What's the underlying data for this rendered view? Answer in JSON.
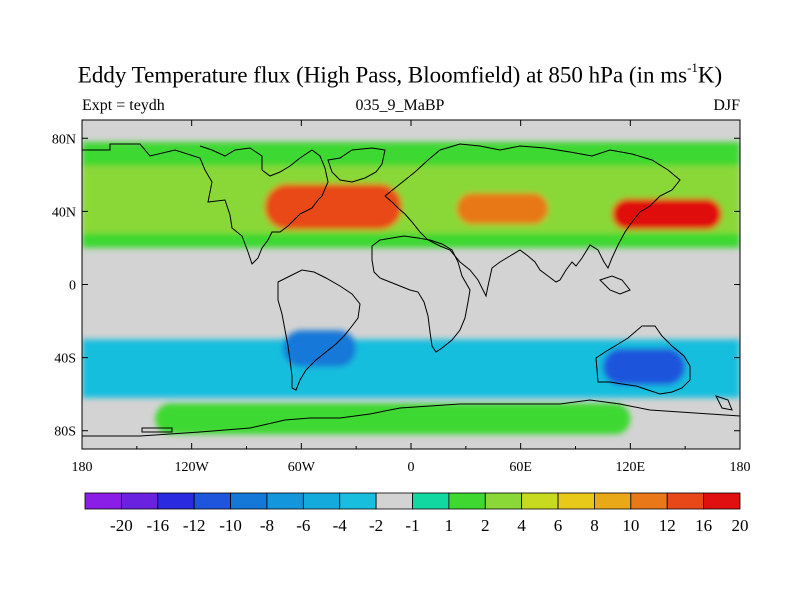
{
  "header": {
    "title": "Eddy Temperature flux (High Pass, Bloomfield) at 850 hPa (in ms",
    "title_sup": "-1",
    "title_end": "K)",
    "left_label": "Expt = teydh",
    "center_label": "035_9_MaBP",
    "right_label": "DJF"
  },
  "map": {
    "projection": "equirectangular",
    "lon_range": [
      -180,
      180
    ],
    "lat_range": [
      -90,
      90
    ],
    "x_ticks": [
      {
        "lon": -180,
        "label": "180"
      },
      {
        "lon": -120,
        "label": "120W"
      },
      {
        "lon": -60,
        "label": "60W"
      },
      {
        "lon": 0,
        "label": "0"
      },
      {
        "lon": 60,
        "label": "60E"
      },
      {
        "lon": 120,
        "label": "120E"
      },
      {
        "lon": 180,
        "label": "180"
      }
    ],
    "y_ticks": [
      {
        "lat": 80,
        "label": "80N"
      },
      {
        "lat": 40,
        "label": "40N"
      },
      {
        "lat": 0,
        "label": "0"
      },
      {
        "lat": -40,
        "label": "40S"
      },
      {
        "lat": -80,
        "label": "80S"
      }
    ],
    "background_color": "#d3d3d3"
  },
  "colorbar": {
    "levels": [
      "-20",
      "-16",
      "-12",
      "-10",
      "-8",
      "-6",
      "-4",
      "-2",
      "-1",
      "1",
      "2",
      "4",
      "6",
      "8",
      "10",
      "12",
      "16",
      "20"
    ],
    "colors": [
      "#8a1ee6",
      "#6a22e0",
      "#2a2ae0",
      "#1e55dc",
      "#1478d8",
      "#1496dc",
      "#14aadc",
      "#18bede",
      "#d3d3d3",
      "#10d8a0",
      "#3ed830",
      "#8ad838",
      "#c8da20",
      "#e8c818",
      "#e8a818",
      "#e87818",
      "#e84818",
      "#e01010"
    ]
  },
  "chart_data": {
    "type": "heatmap",
    "title": "Eddy Temperature flux (High Pass, Bloomfield) at 850 hPa (in ms-1K)",
    "units": "ms-1K",
    "season": "DJF",
    "experiment": "teydh",
    "ylim": [
      -90,
      90
    ],
    "xlim": [
      -180,
      180
    ],
    "features": [
      {
        "name": "north-band",
        "lon": [
          -180,
          180
        ],
        "lat": [
          20,
          78
        ],
        "value": 2
      },
      {
        "name": "north-band-core",
        "lon": [
          -180,
          180
        ],
        "lat": [
          28,
          65
        ],
        "value": 4
      },
      {
        "name": "atlantic-max",
        "lon": [
          -80,
          -5
        ],
        "lat": [
          30,
          55
        ],
        "value": 16
      },
      {
        "name": "siberia-max",
        "lon": [
          25,
          75
        ],
        "lat": [
          33,
          50
        ],
        "value": 12
      },
      {
        "name": "pacific-max",
        "lon": [
          110,
          170
        ],
        "lat": [
          30,
          47
        ],
        "value": 20
      },
      {
        "name": "south-band",
        "lon": [
          -180,
          180
        ],
        "lat": [
          -62,
          -30
        ],
        "value": -2
      },
      {
        "name": "south-america-min",
        "lon": [
          -70,
          -30
        ],
        "lat": [
          -45,
          -25
        ],
        "value": -8
      },
      {
        "name": "australia-min",
        "lon": [
          105,
          150
        ],
        "lat": [
          -55,
          -35
        ],
        "value": -10
      },
      {
        "name": "antarctic-positive",
        "lon": [
          -140,
          120
        ],
        "lat": [
          -82,
          -65
        ],
        "value": 2
      }
    ]
  }
}
